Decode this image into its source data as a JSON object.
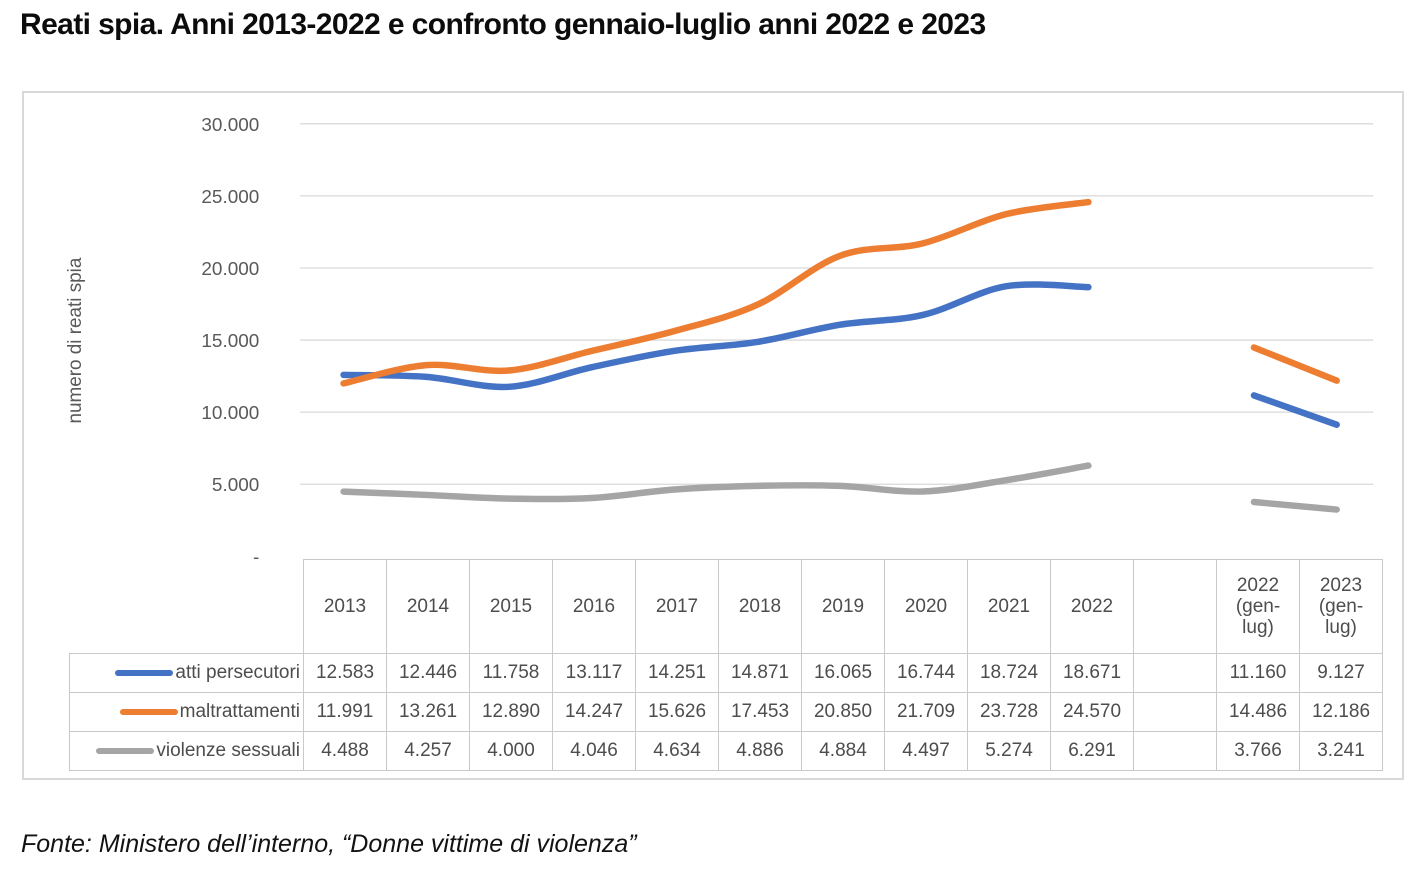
{
  "page": {
    "title": "Reati spia. Anni 2013-2022 e confronto gennaio-luglio anni 2022 e 2023",
    "source_note": "Fonte: Ministero dell’interno, “Donne vittime di violenza”"
  },
  "chart_data": {
    "type": "line",
    "title": "Reati spia. Anni 2013-2022 e confronto gennaio-luglio anni 2022 e 2023",
    "xlabel": "",
    "ylabel": "numero di reati spia",
    "ylim": [
      0,
      30000
    ],
    "ytick_interval": 5000,
    "ytick_labels": [
      "30.000",
      "25.000",
      "20.000",
      "15.000",
      "10.000",
      "5.000",
      "-"
    ],
    "grid": true,
    "gridline_color": "#d9d9d9",
    "axis_text_color": "#595959",
    "legend_position": "table-row-labels",
    "categories": [
      "2013",
      "2014",
      "2015",
      "2016",
      "2017",
      "2018",
      "2019",
      "2020",
      "2021",
      "2022"
    ],
    "comparison_categories": [
      "2022 (gen-lug)",
      "2023 (gen-lug)"
    ],
    "series": [
      {
        "name": "atti persecutori",
        "color": "#4472C4",
        "values": [
          12583,
          12446,
          11758,
          13117,
          14251,
          14871,
          16065,
          16744,
          18724,
          18671
        ],
        "comparison_values": [
          11160,
          9127
        ]
      },
      {
        "name": "maltrattamenti",
        "color": "#ED7D31",
        "values": [
          11991,
          13261,
          12890,
          14247,
          15626,
          17453,
          20850,
          21709,
          23728,
          24570
        ],
        "comparison_values": [
          14486,
          12186
        ]
      },
      {
        "name": "violenze sessuali",
        "color": "#A5A5A5",
        "values": [
          4488,
          4257,
          4000,
          4046,
          4634,
          4886,
          4884,
          4497,
          5274,
          6291
        ],
        "comparison_values": [
          3766,
          3241
        ]
      }
    ]
  }
}
